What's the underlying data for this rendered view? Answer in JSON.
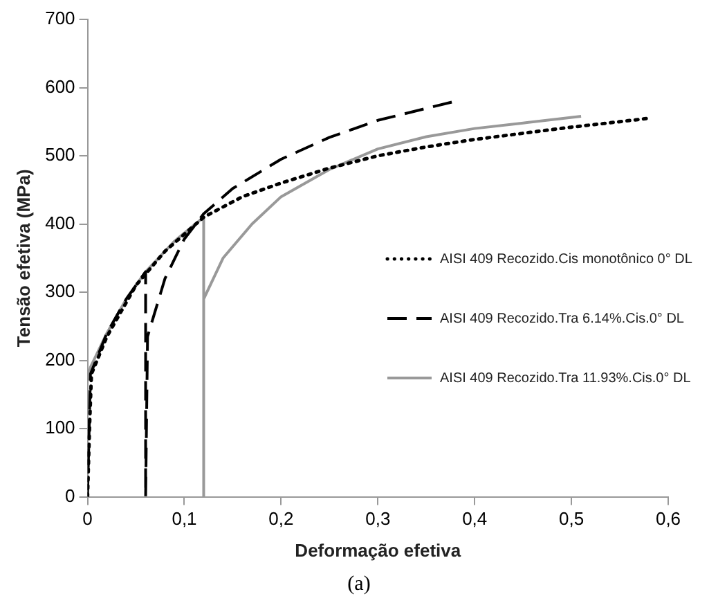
{
  "chart_data": {
    "type": "line",
    "xlabel": "Deformação efetiva",
    "ylabel": "Tensão efetiva (MPa)",
    "xlim": [
      0,
      0.6
    ],
    "ylim": [
      0,
      700
    ],
    "xticks": [
      0,
      {
        "value": 0.1,
        "label": "0,1"
      },
      {
        "value": 0.2,
        "label": "0,2"
      },
      {
        "value": 0.3,
        "label": "0,3"
      },
      {
        "value": 0.4,
        "label": "0,4"
      },
      {
        "value": 0.5,
        "label": "0,5"
      },
      {
        "value": 0.6,
        "label": "0,6"
      }
    ],
    "yticks": [
      0,
      100,
      200,
      300,
      400,
      500,
      600,
      700
    ],
    "grid": false,
    "legend": "right",
    "marker": "none",
    "annotations": [
      "(a)"
    ],
    "series": [
      {
        "name": "AISI 409 Recozido.Cis monotônico 0° DL",
        "color": "#000000",
        "line_style": "dotted",
        "x": [
          0,
          0.002,
          0.004,
          0.02,
          0.05,
          0.08,
          0.12,
          0.16,
          0.2,
          0.25,
          0.3,
          0.35,
          0.4,
          0.45,
          0.5,
          0.55,
          0.58
        ],
        "values": [
          0,
          100,
          180,
          235,
          310,
          360,
          410,
          440,
          460,
          482,
          500,
          513,
          524,
          533,
          542,
          550,
          555
        ]
      },
      {
        "name": "AISI 409 Recozido.Tra 6.14%.Cis.0° DL",
        "color": "#000000",
        "line_style": "dashed",
        "x": [
          0,
          0.003,
          0.02,
          0.04,
          0.06,
          0.06,
          0.062,
          0.08,
          0.1,
          0.12,
          0.15,
          0.2,
          0.25,
          0.3,
          0.38
        ],
        "values": [
          0,
          180,
          240,
          290,
          330,
          0,
          235,
          320,
          378,
          415,
          452,
          495,
          527,
          552,
          580
        ]
      },
      {
        "name": "AISI 409 Recozido.Tra 11.93%.Cis.0° DL",
        "color": "#999999",
        "line_style": "solid",
        "x": [
          0,
          0.003,
          0.02,
          0.04,
          0.06,
          0.09,
          0.12,
          0.12,
          0.12,
          0.14,
          0.17,
          0.2,
          0.25,
          0.3,
          0.35,
          0.4,
          0.45,
          0.51
        ],
        "values": [
          170,
          190,
          240,
          290,
          330,
          375,
          410,
          0,
          290,
          350,
          400,
          440,
          480,
          510,
          528,
          540,
          548,
          558
        ]
      }
    ]
  }
}
